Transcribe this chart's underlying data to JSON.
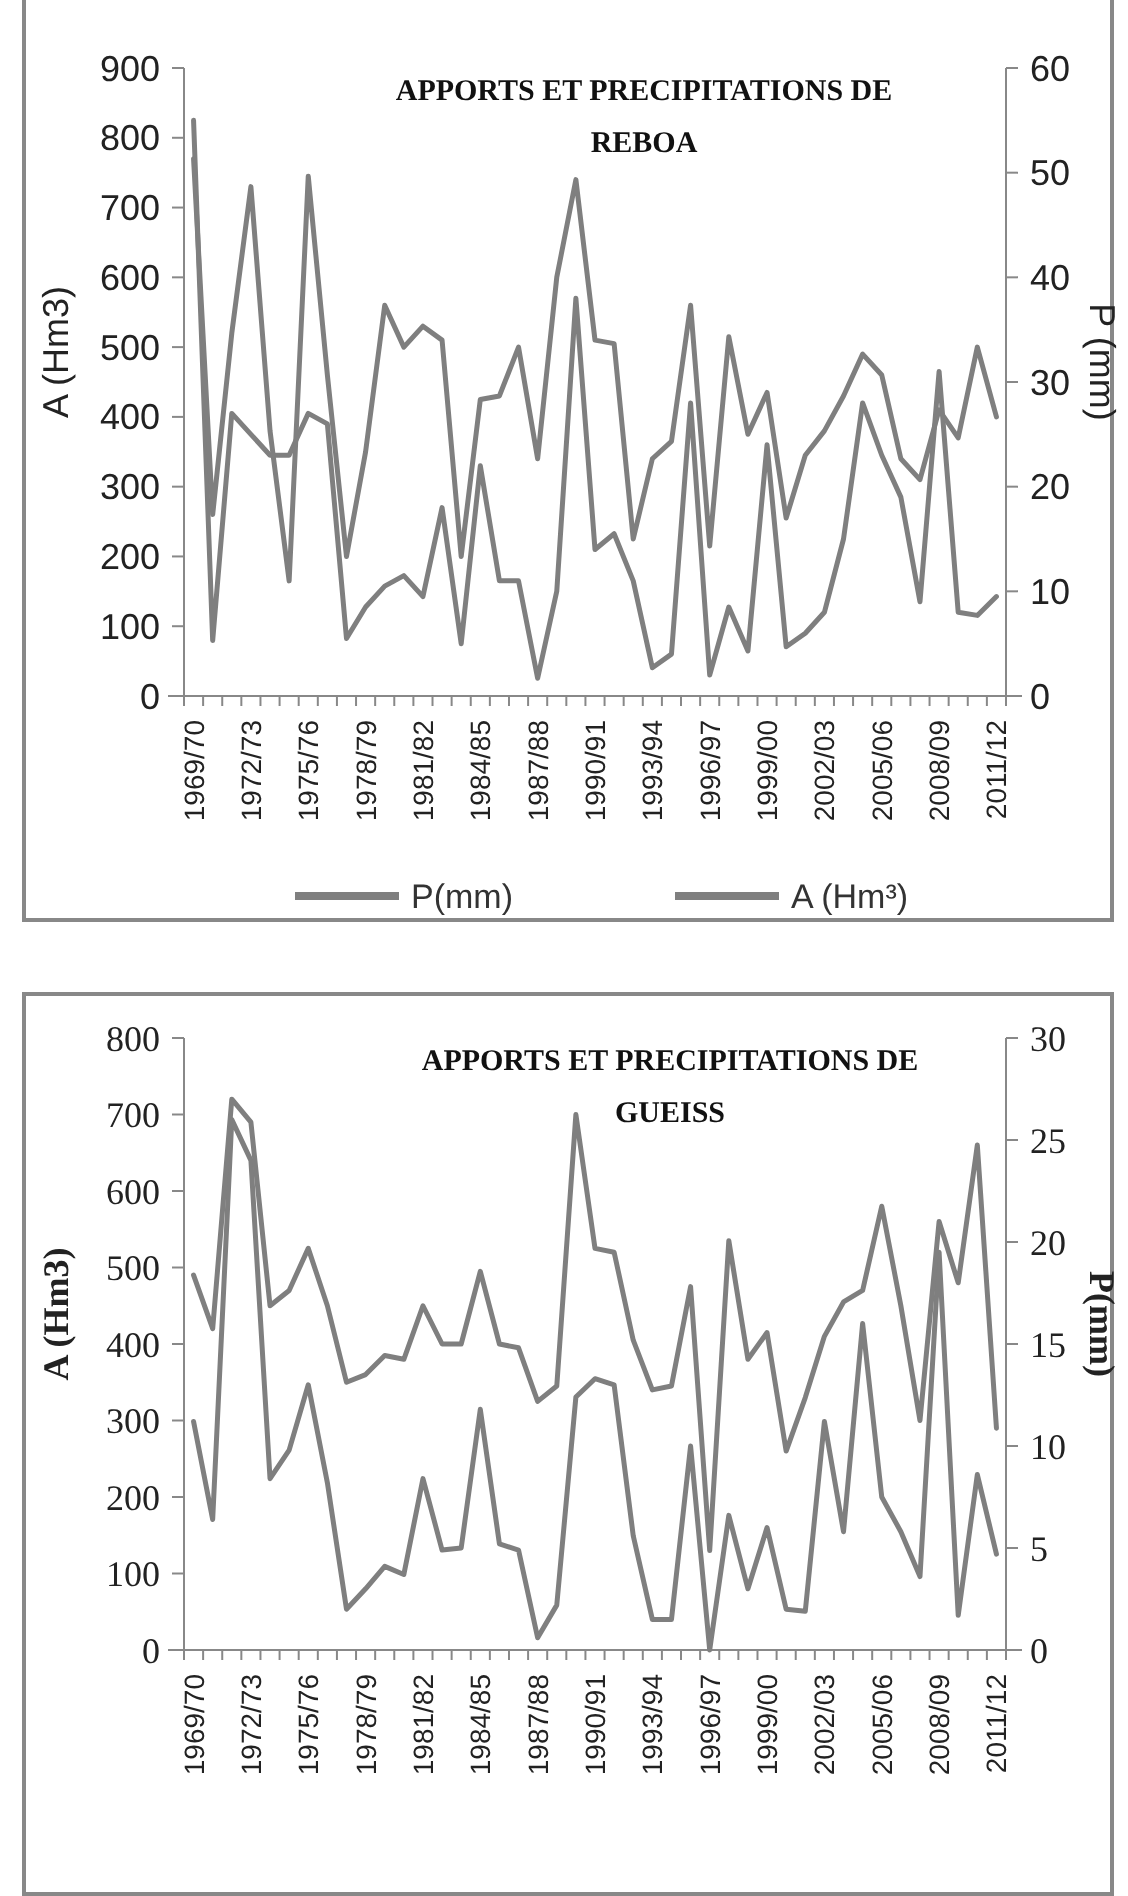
{
  "chart_data": [
    {
      "type": "line",
      "title": "APPORTS ET PRECIPITATIONS DE REBOA",
      "ylabel": "A (Hm3)",
      "y2label": "P (mm)",
      "legend": "bottom",
      "categories": [
        "1969/70",
        null,
        null,
        "1972/73",
        null,
        null,
        "1975/76",
        null,
        null,
        "1978/79",
        null,
        null,
        "1981/82",
        null,
        null,
        "1984/85",
        null,
        null,
        "1987/88",
        null,
        null,
        "1990/91",
        null,
        null,
        "1993/94",
        null,
        null,
        "1996/97",
        null,
        null,
        "1999/00",
        null,
        null,
        "2002/03",
        null,
        null,
        "2005/06",
        null,
        null,
        "2008/09",
        null,
        null,
        "2011/12"
      ],
      "ylim": [
        0,
        900
      ],
      "yticks": [
        0,
        100,
        200,
        300,
        400,
        500,
        600,
        700,
        800,
        900
      ],
      "y2lim": [
        0,
        60
      ],
      "y2ticks": [
        0,
        10,
        20,
        30,
        40,
        50,
        60
      ],
      "series": [
        {
          "name": "P(mm)",
          "color": "#7f7f7f",
          "axis": "y2",
          "values": [
            55,
            5.3,
            27,
            25,
            23,
            23,
            27,
            26,
            5.5,
            8.5,
            10.5,
            11.5,
            9.5,
            18,
            5,
            22,
            11,
            11,
            1.7,
            10,
            38,
            14,
            15.5,
            11,
            2.7,
            4,
            28,
            2,
            8.5,
            4.3,
            24,
            4.7,
            6,
            8,
            15,
            28,
            23,
            19,
            9,
            31,
            8,
            7.7,
            9.5
          ]
        },
        {
          "name": "A (Hm³)",
          "color": "#7f7f7f",
          "values": [
            770,
            260,
            520,
            730,
            380,
            165,
            745,
            460,
            200,
            350,
            560,
            500,
            530,
            510,
            200,
            425,
            430,
            500,
            340,
            600,
            740,
            510,
            505,
            225,
            340,
            365,
            560,
            215,
            515,
            375,
            435,
            255,
            345,
            380,
            430,
            490,
            460,
            340,
            310,
            410,
            370,
            500,
            400
          ]
        }
      ]
    },
    {
      "type": "line",
      "title": "APPORTS ET PRECIPITATIONS DE GUEISS",
      "ylabel": "A (Hm3)",
      "y2label": "P(mm)",
      "categories": [
        "1969/70",
        null,
        null,
        "1972/73",
        null,
        null,
        "1975/76",
        null,
        null,
        "1978/79",
        null,
        null,
        "1981/82",
        null,
        null,
        "1984/85",
        null,
        null,
        "1987/88",
        null,
        null,
        "1990/91",
        null,
        null,
        "1993/94",
        null,
        null,
        "1996/97",
        null,
        null,
        "1999/00",
        null,
        null,
        "2002/03",
        null,
        null,
        "2005/06",
        null,
        null,
        "2008/09",
        null,
        null,
        "2011/12"
      ],
      "ylim": [
        0,
        800
      ],
      "yticks": [
        0,
        100,
        200,
        300,
        400,
        500,
        600,
        700,
        800
      ],
      "y2lim": [
        0,
        30
      ],
      "y2ticks": [
        0,
        5,
        10,
        15,
        20,
        25,
        30
      ],
      "series": [
        {
          "color": "#7f7f7f",
          "axis": "y2",
          "values": [
            11.2,
            6.4,
            26,
            24,
            8.4,
            9.8,
            13,
            8.2,
            2,
            3,
            4.1,
            3.7,
            8.4,
            4.9,
            5,
            11.8,
            5.2,
            4.9,
            0.6,
            2.2,
            12.4,
            13.3,
            13,
            5.6,
            1.5,
            1.5,
            10,
            0,
            6.6,
            3,
            6,
            2,
            1.9,
            11.2,
            5.8,
            16,
            7.5,
            5.8,
            3.6,
            19.5,
            1.7,
            8.6,
            4.7
          ]
        },
        {
          "color": "#7f7f7f",
          "values": [
            490,
            420,
            720,
            690,
            450,
            470,
            525,
            450,
            350,
            360,
            385,
            380,
            450,
            400,
            400,
            495,
            400,
            395,
            325,
            345,
            700,
            525,
            520,
            405,
            340,
            345,
            475,
            130,
            535,
            380,
            415,
            260,
            330,
            410,
            455,
            470,
            580,
            450,
            300,
            560,
            480,
            660,
            290
          ]
        }
      ]
    }
  ]
}
